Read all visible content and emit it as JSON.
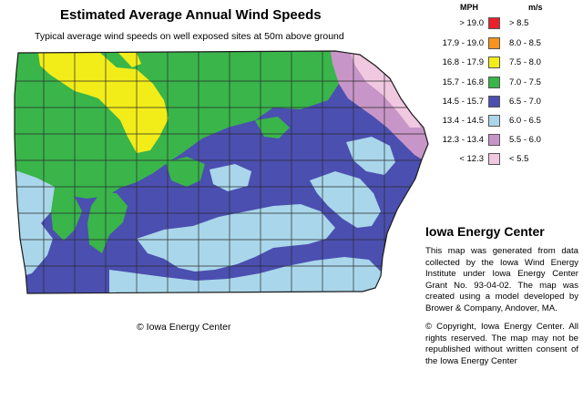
{
  "title": "Estimated Average Annual Wind Speeds",
  "subtitle": "Typical average wind speeds on well exposed sites at 50m above ground",
  "map_credit": "© Iowa Energy Center",
  "legend": {
    "header_mph": "MPH",
    "header_ms": "m/s",
    "items": [
      {
        "mph": "> 19.0",
        "ms": "> 8.5",
        "color": "#e8222b"
      },
      {
        "mph": "17.9 - 19.0",
        "ms": "8.0 - 8.5",
        "color": "#f7931e"
      },
      {
        "mph": "16.8 - 17.9",
        "ms": "7.5 - 8.0",
        "color": "#f2ec19"
      },
      {
        "mph": "15.7 - 16.8",
        "ms": "7.0 - 7.5",
        "color": "#39b54a"
      },
      {
        "mph": "14.5 - 15.7",
        "ms": "6.5 - 7.0",
        "color": "#4b4fb0"
      },
      {
        "mph": "13.4 - 14.5",
        "ms": "6.0 - 6.5",
        "color": "#a9d6ea"
      },
      {
        "mph": "12.3 - 13.4",
        "ms": "5.5 - 6.0",
        "color": "#c795c7"
      },
      {
        "mph": "< 12.3",
        "ms": "< 5.5",
        "color": "#f0c8e0"
      }
    ]
  },
  "info": {
    "title": "Iowa Energy Center",
    "paragraph1": "This map was generated from data collected by the Iowa Wind Energy Institute under Iowa Energy Center Grant No. 93-04-02. The map was created using a model developed by Brower & Company, Andover, MA.",
    "paragraph2": "© Copyright, Iowa Energy Center. All rights reserved. The map may not be republished without written consent of the Iowa Energy Center"
  },
  "colors": {
    "yellow": "#f2ec19",
    "green": "#39b54a",
    "blue": "#4b4fb0",
    "lightblue": "#a9d6ea",
    "purple": "#c795c7",
    "pink": "#f0c8e0",
    "county_lines": "#2a2a2a"
  }
}
